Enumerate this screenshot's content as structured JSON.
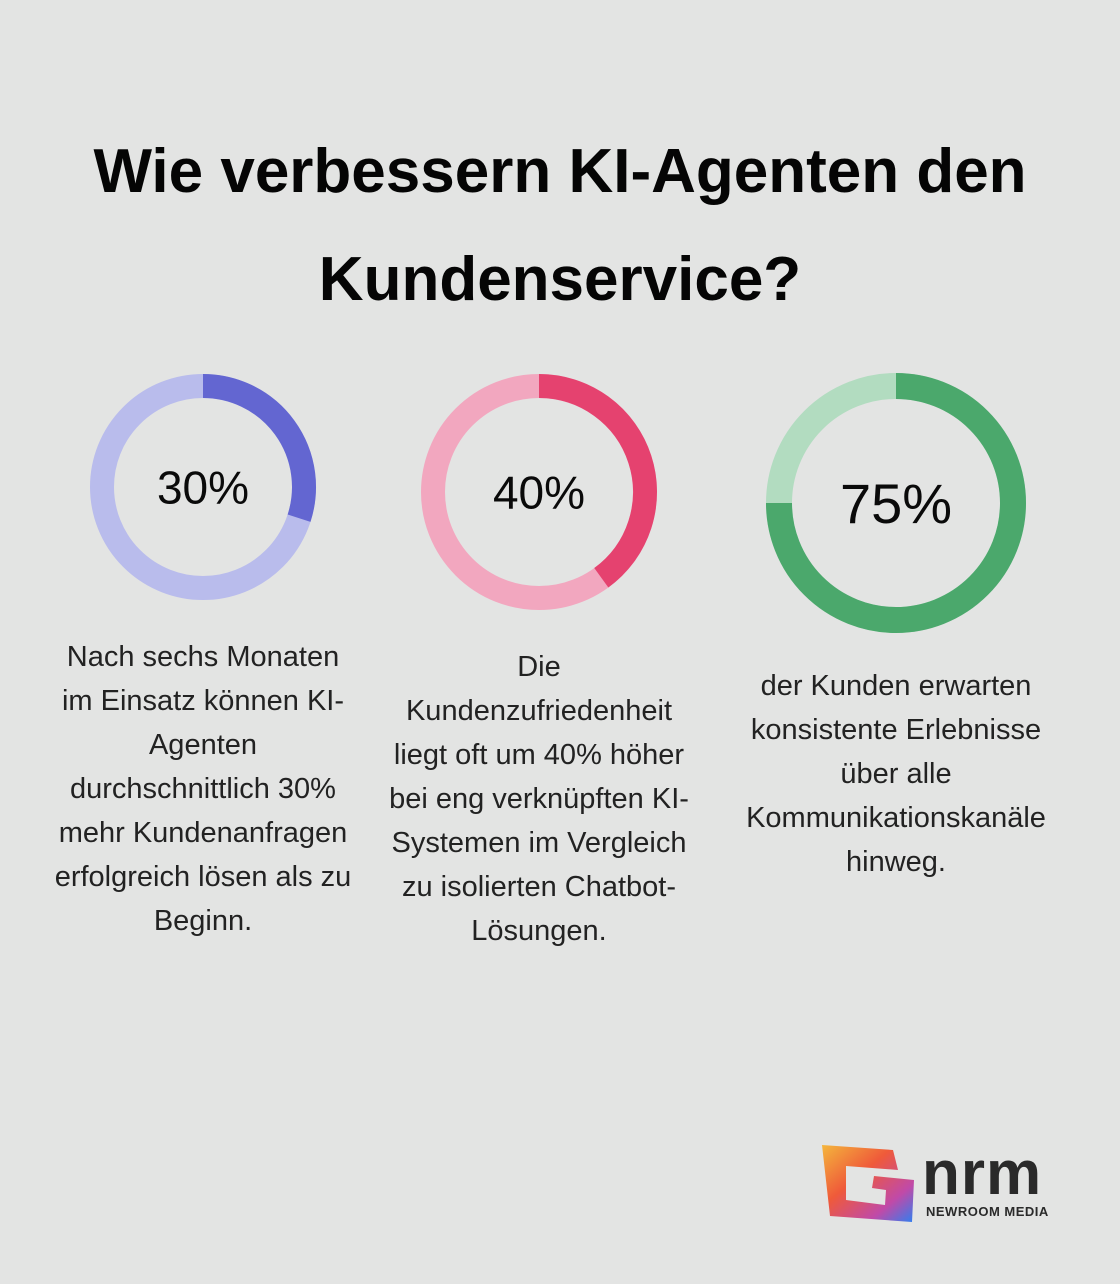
{
  "title": "Wie verbessern KI-Agenten den Kundenservice?",
  "chart_data": [
    {
      "type": "donut",
      "values": [
        30
      ],
      "value_labels": [
        "30%"
      ],
      "color": "#6366d1",
      "track_color": "#b9bcec",
      "description": "Nach sechs Monaten im Einsatz können KI-Agenten durchschnittlich 30% mehr Kundenanfragen erfolgreich lösen als zu Beginn."
    },
    {
      "type": "donut",
      "values": [
        40
      ],
      "value_labels": [
        "40%"
      ],
      "color": "#e5426f",
      "track_color": "#f2a7bf",
      "description": "Die Kundenzufriedenheit liegt oft um 40% höher bei eng verknüpften KI-Systemen im Vergleich zu isolierten Chatbot-Lösungen."
    },
    {
      "type": "donut",
      "values": [
        75
      ],
      "value_labels": [
        "75%"
      ],
      "color": "#4ba86c",
      "track_color": "#b2dcc0",
      "description": "der Kunden erwarten konsistente Erlebnisse über alle Kommunikationskanäle hinweg."
    }
  ],
  "logo": {
    "name": "nrm",
    "subtitle": "NEWROOM MEDIA"
  }
}
